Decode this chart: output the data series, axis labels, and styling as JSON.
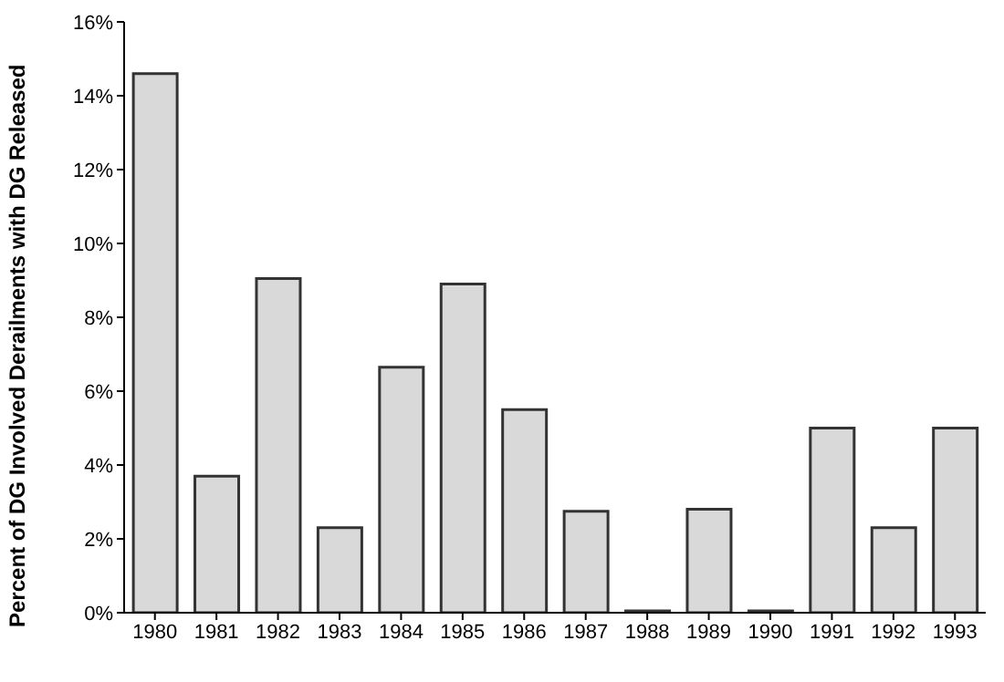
{
  "chart_data": {
    "type": "bar",
    "ylabel": "Percent of DG Involved Derailments with DG Released",
    "categories": [
      "1980",
      "1981",
      "1982",
      "1983",
      "1984",
      "1985",
      "1986",
      "1987",
      "1988",
      "1989",
      "1990",
      "1991",
      "1992",
      "1993"
    ],
    "values": [
      14.6,
      3.7,
      9.05,
      2.3,
      6.65,
      8.9,
      5.5,
      2.75,
      0.05,
      2.8,
      0.05,
      5.0,
      2.3,
      5.0
    ],
    "color": "#d9d9d9",
    "ylim": [
      0,
      16
    ],
    "yticks": [
      {
        "value": 0,
        "label": "0%"
      },
      {
        "value": 2,
        "label": "2%"
      },
      {
        "value": 4,
        "label": "4%"
      },
      {
        "value": 6,
        "label": "6%"
      },
      {
        "value": 8,
        "label": "8%"
      },
      {
        "value": 10,
        "label": "10%"
      },
      {
        "value": 12,
        "label": "12%"
      },
      {
        "value": 14,
        "label": "14%"
      },
      {
        "value": 16,
        "label": "16%"
      }
    ],
    "grid": false,
    "legend": false
  }
}
